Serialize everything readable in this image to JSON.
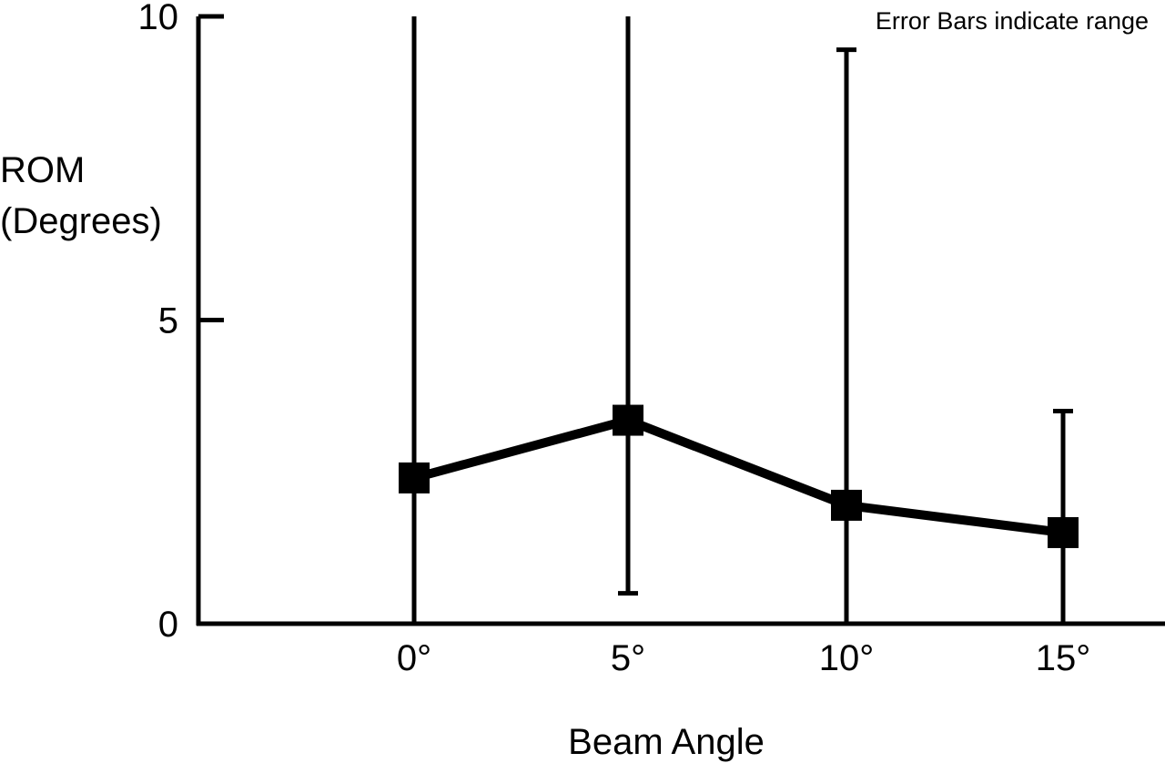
{
  "chart_data": {
    "type": "line",
    "xlabel": "Beam Angle",
    "ylabel_line1": "ROM",
    "ylabel_line2": "(Degrees)",
    "annotation": "Error Bars indicate range",
    "categories": [
      "0°",
      "5°",
      "10°",
      "15°"
    ],
    "yticks": [
      0,
      5,
      10
    ],
    "ylim": [
      0,
      10
    ],
    "series": [
      {
        "values": [
          2.4,
          3.35,
          1.95,
          1.5
        ],
        "error_range": [
          [
            0,
            10
          ],
          [
            0.5,
            10
          ],
          [
            0,
            9.45
          ],
          [
            0,
            3.5
          ]
        ]
      }
    ],
    "grid": false,
    "color": "#000000"
  }
}
